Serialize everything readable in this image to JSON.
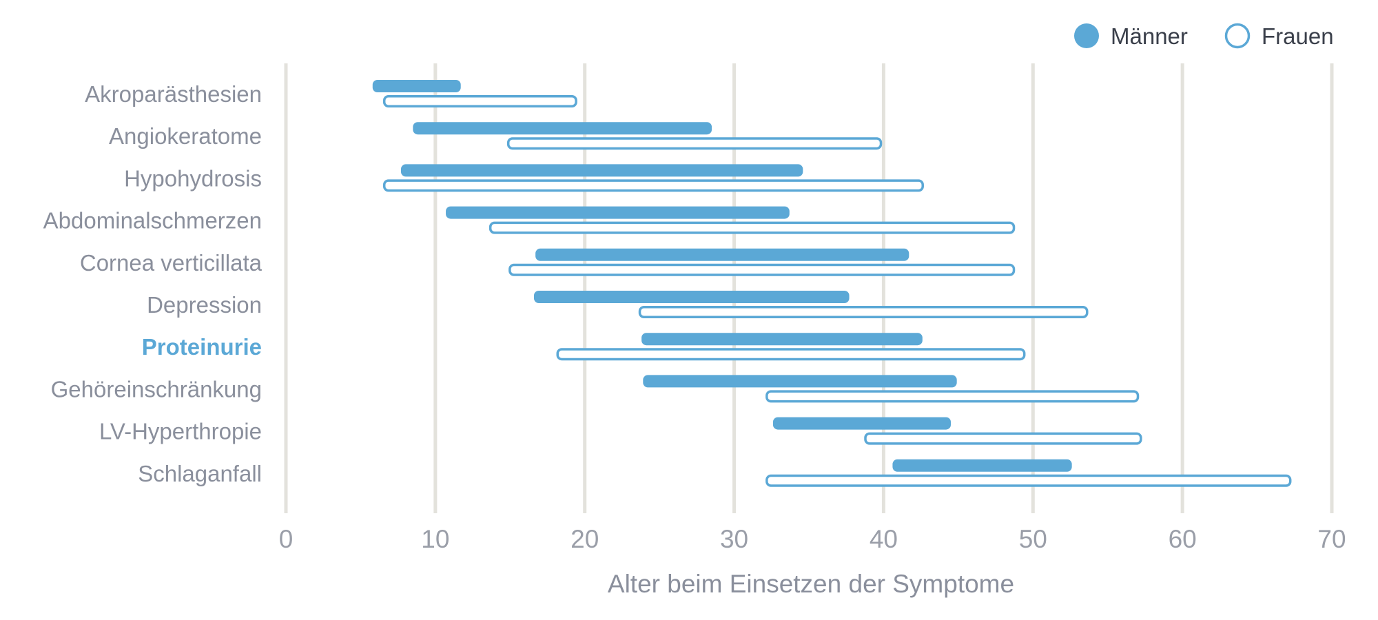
{
  "chart_data": {
    "type": "bar",
    "subtype": "range",
    "title": "",
    "xlabel": "Alter beim Einsetzen der Symptome",
    "ylabel": "",
    "xlim": [
      0,
      70
    ],
    "xticks": [
      0,
      10,
      20,
      30,
      40,
      50,
      60,
      70
    ],
    "grid": "vertical",
    "legend": "top-right",
    "categories": [
      "Akroparästhesien",
      "Angiokeratome",
      "Hypohydrosis",
      "Abdominalschmerzen",
      "Cornea verticillata",
      "Depression",
      "Proteinurie",
      "Gehöreinschränkung",
      "LV-Hyperthropie",
      "Schlaganfall"
    ],
    "highlighted_category": "Proteinurie",
    "series": [
      {
        "name": "Männer",
        "style": "filled",
        "color": "#5ba8d6",
        "ranges": [
          [
            5.8,
            11.7
          ],
          [
            8.5,
            28.5
          ],
          [
            7.7,
            34.6
          ],
          [
            10.7,
            33.7
          ],
          [
            16.7,
            41.7
          ],
          [
            16.6,
            37.7
          ],
          [
            23.8,
            42.6
          ],
          [
            23.9,
            44.9
          ],
          [
            32.6,
            44.5
          ],
          [
            40.6,
            52.6
          ]
        ]
      },
      {
        "name": "Frauen",
        "style": "outline",
        "color": "#5ba8d6",
        "ranges": [
          [
            6.5,
            19.5
          ],
          [
            14.8,
            39.9
          ],
          [
            6.5,
            42.7
          ],
          [
            13.6,
            48.8
          ],
          [
            14.9,
            48.8
          ],
          [
            23.6,
            53.7
          ],
          [
            18.1,
            49.5
          ],
          [
            32.1,
            57.1
          ],
          [
            38.7,
            57.3
          ],
          [
            32.1,
            67.3
          ]
        ]
      }
    ]
  }
}
